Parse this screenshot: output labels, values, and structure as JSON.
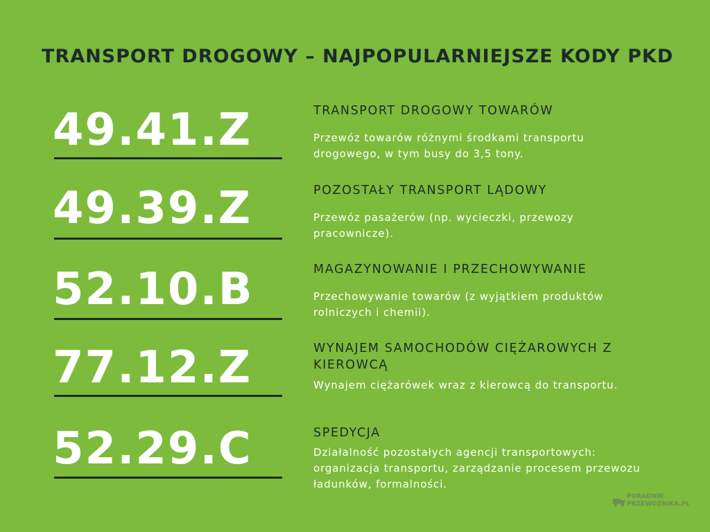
{
  "title": "TRANSPORT DROGOWY – NAJPOPULARNIEJSZE KODY PKD",
  "items": [
    {
      "code": "49.41.Z",
      "heading": "TRANSPORT DROGOWY TOWARÓW",
      "description": "Przewóz towarów różnymi środkami transportu drogowego, w tym busy do 3,5 tony."
    },
    {
      "code": "49.39.Z",
      "heading": "POZOSTAŁY TRANSPORT LĄDOWY",
      "description": "Przewóz pasażerów (np. wycieczki, przewozy pracownicze)."
    },
    {
      "code": "52.10.B",
      "heading": "MAGAZYNOWANIE I PRZECHOWYWANIE",
      "description": "Przechowywanie towarów (z wyjątkiem produktów rolniczych i chemii)."
    },
    {
      "code": "77.12.Z",
      "heading": "WYNAJEM SAMOCHODÓW CIĘŻAROWYCH Z KIEROWCĄ",
      "description": "Wynajem ciężarówek wraz z kierowcą do transportu."
    },
    {
      "code": "52.29.C",
      "heading": "SPEDYCJA",
      "description": "Działalność pozostałych agencji transportowych: organizacja transportu, zarządzanie procesem przewozu ładunków, formalności."
    }
  ],
  "logo": {
    "line1": "PORADNIK",
    "line2": "PRZEWOZNIKA.PL"
  }
}
